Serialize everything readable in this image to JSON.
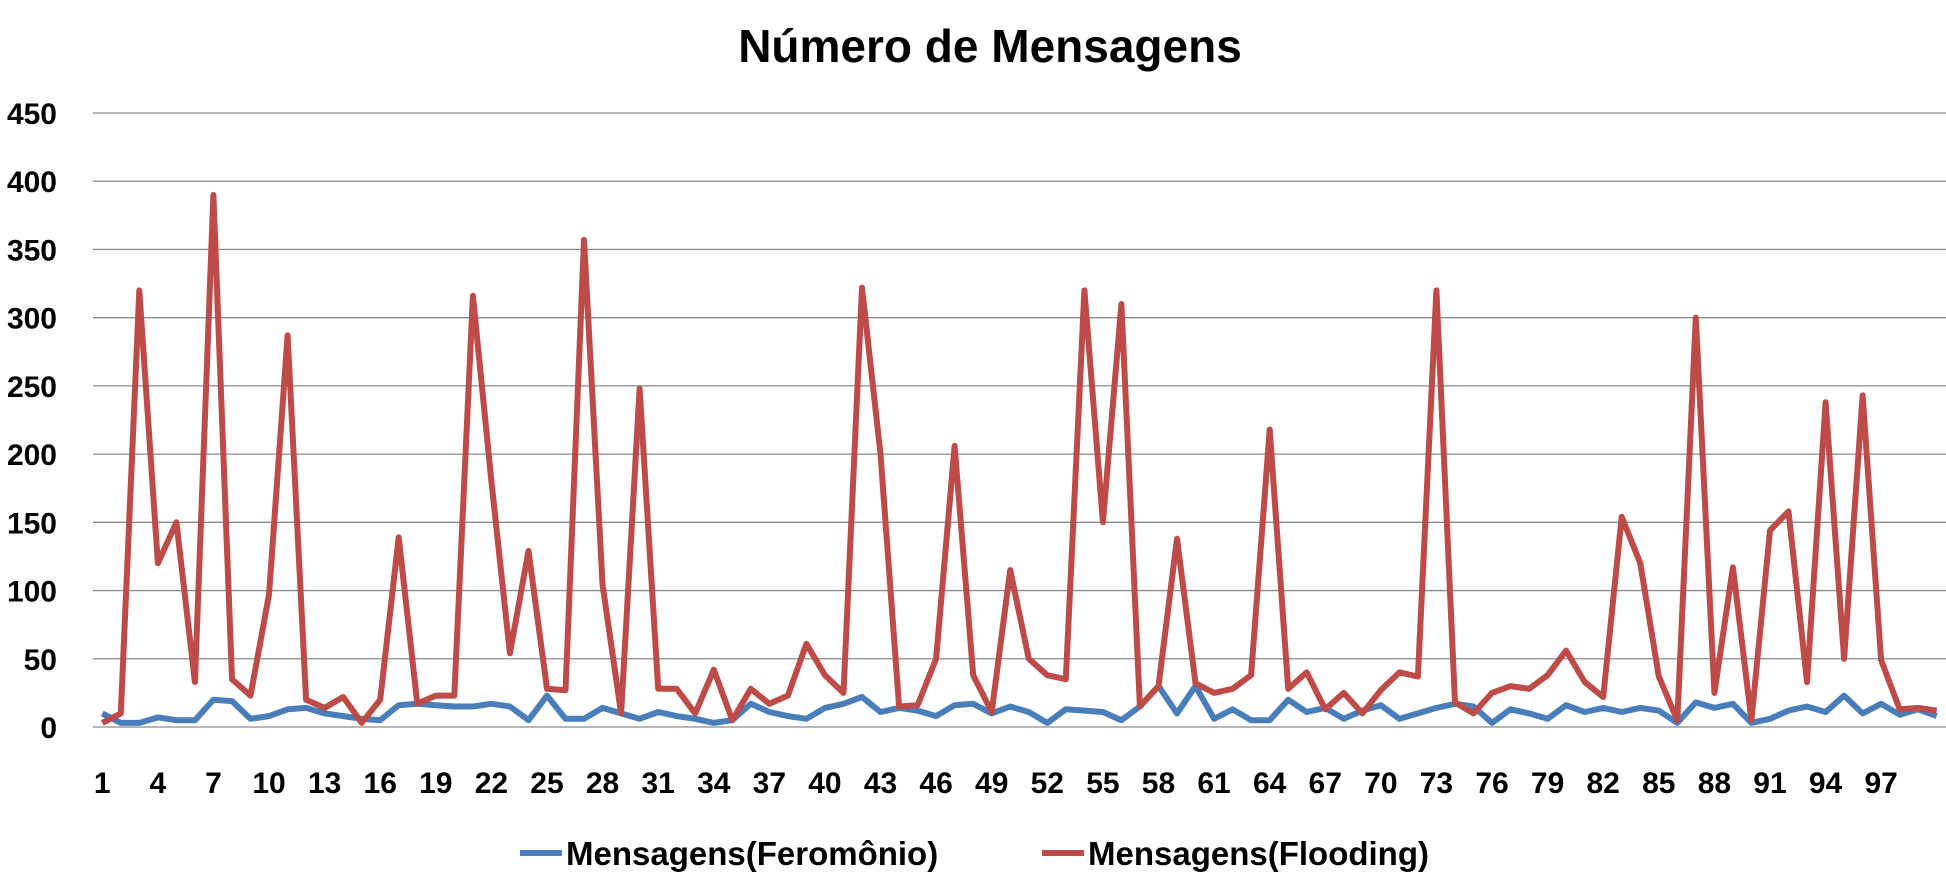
{
  "chart_data": {
    "type": "line",
    "title": "Número de Mensagens",
    "xlabel": "",
    "ylabel": "",
    "ylim": [
      0,
      450
    ],
    "yticks": [
      0,
      50,
      100,
      150,
      200,
      250,
      300,
      350,
      400,
      450
    ],
    "x": [
      1,
      2,
      3,
      4,
      5,
      6,
      7,
      8,
      9,
      10,
      11,
      12,
      13,
      14,
      15,
      16,
      17,
      18,
      19,
      20,
      21,
      22,
      23,
      24,
      25,
      26,
      27,
      28,
      29,
      30,
      31,
      32,
      33,
      34,
      35,
      36,
      37,
      38,
      39,
      40,
      41,
      42,
      43,
      44,
      45,
      46,
      47,
      48,
      49,
      50,
      51,
      52,
      53,
      54,
      55,
      56,
      57,
      58,
      59,
      60,
      61,
      62,
      63,
      64,
      65,
      66,
      67,
      68,
      69,
      70,
      71,
      72,
      73,
      74,
      75,
      76,
      77,
      78,
      79,
      80,
      81,
      82,
      83,
      84,
      85,
      86,
      87,
      88,
      89,
      90,
      91,
      92,
      93,
      94,
      95,
      96,
      97,
      98,
      99,
      100
    ],
    "xtick_labels": [
      "1",
      "4",
      "7",
      "10",
      "13",
      "16",
      "19",
      "22",
      "25",
      "28",
      "31",
      "34",
      "37",
      "40",
      "43",
      "46",
      "49",
      "52",
      "55",
      "58",
      "61",
      "64",
      "67",
      "70",
      "73",
      "76",
      "79",
      "82",
      "85",
      "88",
      "91",
      "94",
      "97"
    ],
    "grid": true,
    "legend_position": "bottom",
    "series": [
      {
        "name": "Mensagens(Feromônio)",
        "color": "#4a7ebb",
        "values": [
          10,
          3,
          3,
          7,
          5,
          5,
          20,
          19,
          6,
          8,
          13,
          14,
          10,
          8,
          6,
          5,
          16,
          17,
          16,
          15,
          15,
          17,
          15,
          5,
          23,
          6,
          6,
          14,
          10,
          6,
          11,
          8,
          6,
          3,
          5,
          17,
          11,
          8,
          6,
          14,
          17,
          22,
          11,
          14,
          12,
          8,
          16,
          17,
          10,
          15,
          11,
          3,
          13,
          12,
          11,
          5,
          15,
          30,
          10,
          30,
          6,
          13,
          5,
          5,
          20,
          11,
          14,
          6,
          12,
          16,
          6,
          10,
          14,
          17,
          15,
          3,
          13,
          10,
          6,
          16,
          11,
          14,
          11,
          14,
          12,
          3,
          18,
          14,
          17,
          3,
          6,
          12,
          15,
          11,
          23,
          10,
          17,
          9,
          13,
          8
        ]
      },
      {
        "name": "Mensagens(Flooding)",
        "color": "#be4b48",
        "values": [
          3,
          10,
          320,
          120,
          150,
          33,
          390,
          35,
          23,
          97,
          287,
          20,
          14,
          22,
          3,
          20,
          139,
          17,
          23,
          23,
          316,
          180,
          54,
          129,
          28,
          27,
          357,
          104,
          10,
          248,
          28,
          28,
          10,
          42,
          5,
          28,
          17,
          23,
          61,
          38,
          25,
          322,
          200,
          15,
          16,
          50,
          206,
          38,
          11,
          115,
          50,
          38,
          35,
          320,
          150,
          310,
          15,
          30,
          138,
          32,
          25,
          28,
          38,
          218,
          28,
          40,
          13,
          25,
          10,
          27,
          40,
          37,
          320,
          18,
          10,
          25,
          30,
          28,
          38,
          56,
          33,
          22,
          154,
          120,
          37,
          5,
          300,
          25,
          117,
          5,
          144,
          158,
          33,
          238,
          50,
          243,
          49,
          13,
          14,
          12
        ]
      }
    ]
  }
}
